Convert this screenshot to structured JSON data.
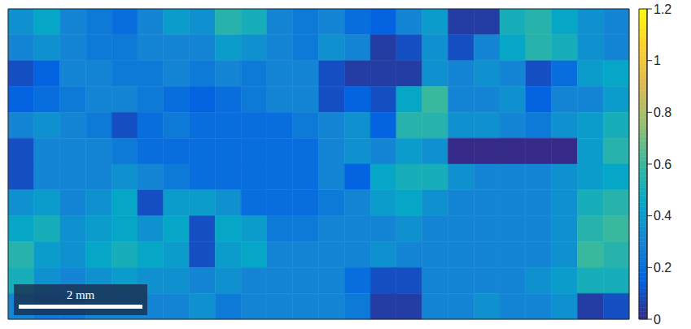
{
  "chart_data": {
    "type": "heatmap",
    "xlim": [
      0,
      10.04
    ],
    "ylim": [
      0,
      5.03
    ],
    "tick_labels": false,
    "cells": [
      [
        0.35,
        0.45,
        0.3,
        0.25,
        0.2,
        0.3,
        0.4,
        0.35,
        0.55,
        0.5,
        0.3,
        0.25,
        0.3,
        0.2,
        0.15,
        0.3,
        0.4,
        0.05,
        0.05,
        0.5,
        0.55,
        0.45,
        0.35,
        0.3
      ],
      [
        0.3,
        0.35,
        0.3,
        0.25,
        0.25,
        0.3,
        0.3,
        0.3,
        0.4,
        0.35,
        0.3,
        0.25,
        0.35,
        0.3,
        0.05,
        0.1,
        0.35,
        0.1,
        0.3,
        0.45,
        0.55,
        0.5,
        0.35,
        0.3
      ],
      [
        0.1,
        0.15,
        0.3,
        0.3,
        0.25,
        0.25,
        0.3,
        0.25,
        0.3,
        0.25,
        0.3,
        0.3,
        0.1,
        0.05,
        0.05,
        0.05,
        0.35,
        0.3,
        0.35,
        0.3,
        0.1,
        0.2,
        0.4,
        0.45
      ],
      [
        0.15,
        0.2,
        0.25,
        0.3,
        0.3,
        0.25,
        0.2,
        0.15,
        0.2,
        0.25,
        0.3,
        0.3,
        0.1,
        0.15,
        0.1,
        0.45,
        0.6,
        0.3,
        0.3,
        0.35,
        0.15,
        0.3,
        0.3,
        0.4
      ],
      [
        0.3,
        0.35,
        0.3,
        0.25,
        0.1,
        0.2,
        0.25,
        0.2,
        0.2,
        0.2,
        0.2,
        0.25,
        0.3,
        0.35,
        0.15,
        0.55,
        0.55,
        0.35,
        0.35,
        0.3,
        0.25,
        0.35,
        0.4,
        0.5
      ],
      [
        0.1,
        0.3,
        0.3,
        0.3,
        0.25,
        0.2,
        0.2,
        0.2,
        0.2,
        0.2,
        0.2,
        0.2,
        0.3,
        0.35,
        0.3,
        0.4,
        0.35,
        0,
        0,
        0,
        0,
        0,
        0.4,
        0.55
      ],
      [
        0.1,
        0.3,
        0.3,
        0.3,
        0.35,
        0.3,
        0.25,
        0.2,
        0.2,
        0.2,
        0.2,
        0.2,
        0.3,
        0.15,
        0.45,
        0.5,
        0.5,
        0.35,
        0.3,
        0.3,
        0.3,
        0.35,
        0.4,
        0.45
      ],
      [
        0.35,
        0.4,
        0.3,
        0.35,
        0.45,
        0.1,
        0.4,
        0.4,
        0.35,
        0.2,
        0.2,
        0.2,
        0.25,
        0.3,
        0.4,
        0.45,
        0.35,
        0.3,
        0.3,
        0.3,
        0.3,
        0.35,
        0.5,
        0.55
      ],
      [
        0.45,
        0.5,
        0.35,
        0.4,
        0.45,
        0.35,
        0.45,
        0.1,
        0.45,
        0.4,
        0.25,
        0.25,
        0.3,
        0.3,
        0.3,
        0.35,
        0.3,
        0.3,
        0.3,
        0.3,
        0.3,
        0.35,
        0.55,
        0.6
      ],
      [
        0.55,
        0.4,
        0.35,
        0.45,
        0.5,
        0.45,
        0.4,
        0.1,
        0.4,
        0.45,
        0.3,
        0.3,
        0.3,
        0.3,
        0.35,
        0.3,
        0.3,
        0.3,
        0.3,
        0.3,
        0.3,
        0.35,
        0.6,
        0.55
      ],
      [
        0.5,
        0.35,
        0.3,
        0.35,
        0.4,
        0.35,
        0.35,
        0.3,
        0.35,
        0.3,
        0.3,
        0.3,
        0.3,
        0.2,
        0.1,
        0.1,
        0.3,
        0.3,
        0.3,
        0.3,
        0.35,
        0.4,
        0.5,
        0.5
      ],
      [
        0.3,
        0.25,
        0.25,
        0.3,
        0.3,
        0.3,
        0.3,
        0.35,
        0.25,
        0.3,
        0.3,
        0.3,
        0.3,
        0.25,
        0.05,
        0.05,
        0.3,
        0.3,
        0.35,
        0.3,
        0.3,
        0.35,
        0.05,
        0.1
      ]
    ],
    "colorbar_range": [
      0,
      1.2
    ],
    "colorbar_ticks": [
      0,
      0.2,
      0.4,
      0.6,
      0.8,
      1,
      1.2
    ],
    "scale_bar": {
      "label": "2 mm",
      "length": 2
    }
  }
}
